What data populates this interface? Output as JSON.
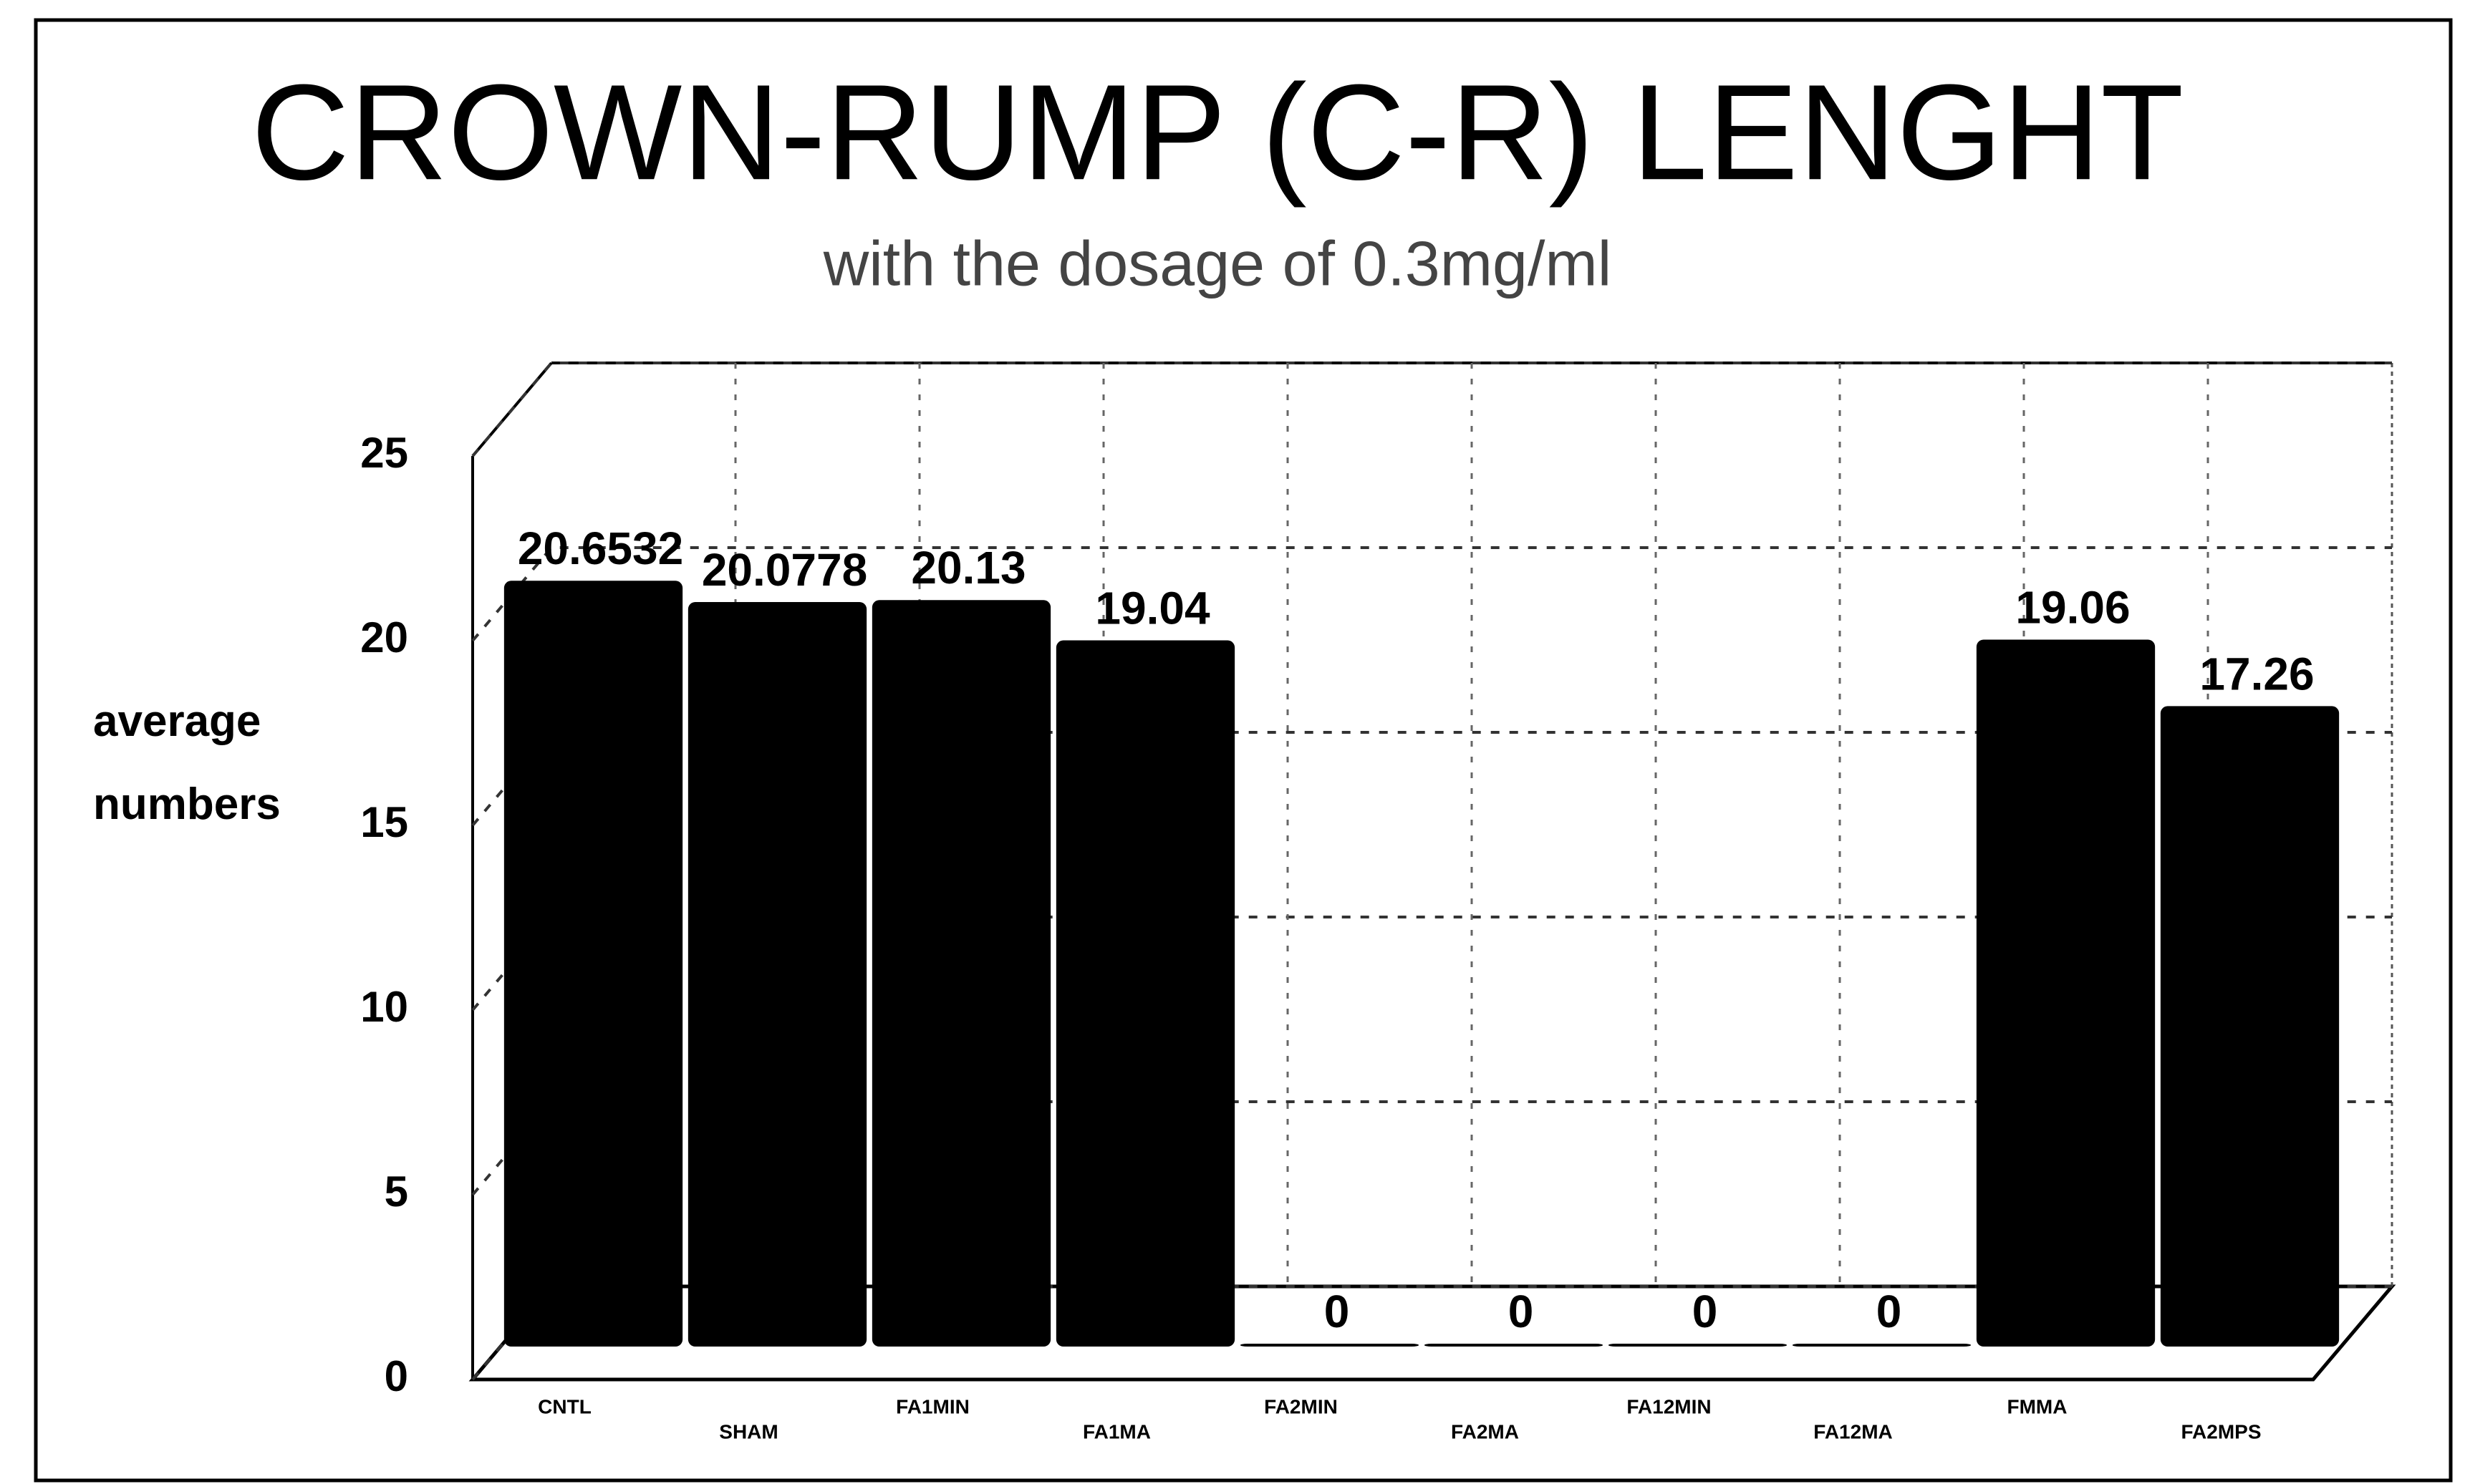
{
  "chart_data": {
    "type": "bar",
    "title": "CROWN-RUMP (C-R) LENGHT",
    "subtitle": "with the dosage of 0.3mg/ml",
    "y_label": "average numbers",
    "categories": [
      "CNTL",
      "SHAM",
      "FA1MIN",
      "FA1MA",
      "FA2MIN",
      "FA2MA",
      "FA12MIN",
      "FA12MA",
      "FMMA",
      "FA2MPS"
    ],
    "values": [
      20.6532,
      20.0778,
      20.13,
      19.04,
      0,
      0,
      0,
      0,
      19.06,
      17.26
    ],
    "color": "#000000",
    "ylim": [
      0,
      25
    ],
    "yticks": [
      0,
      5,
      10,
      15,
      20,
      25
    ],
    "grid": true
  }
}
